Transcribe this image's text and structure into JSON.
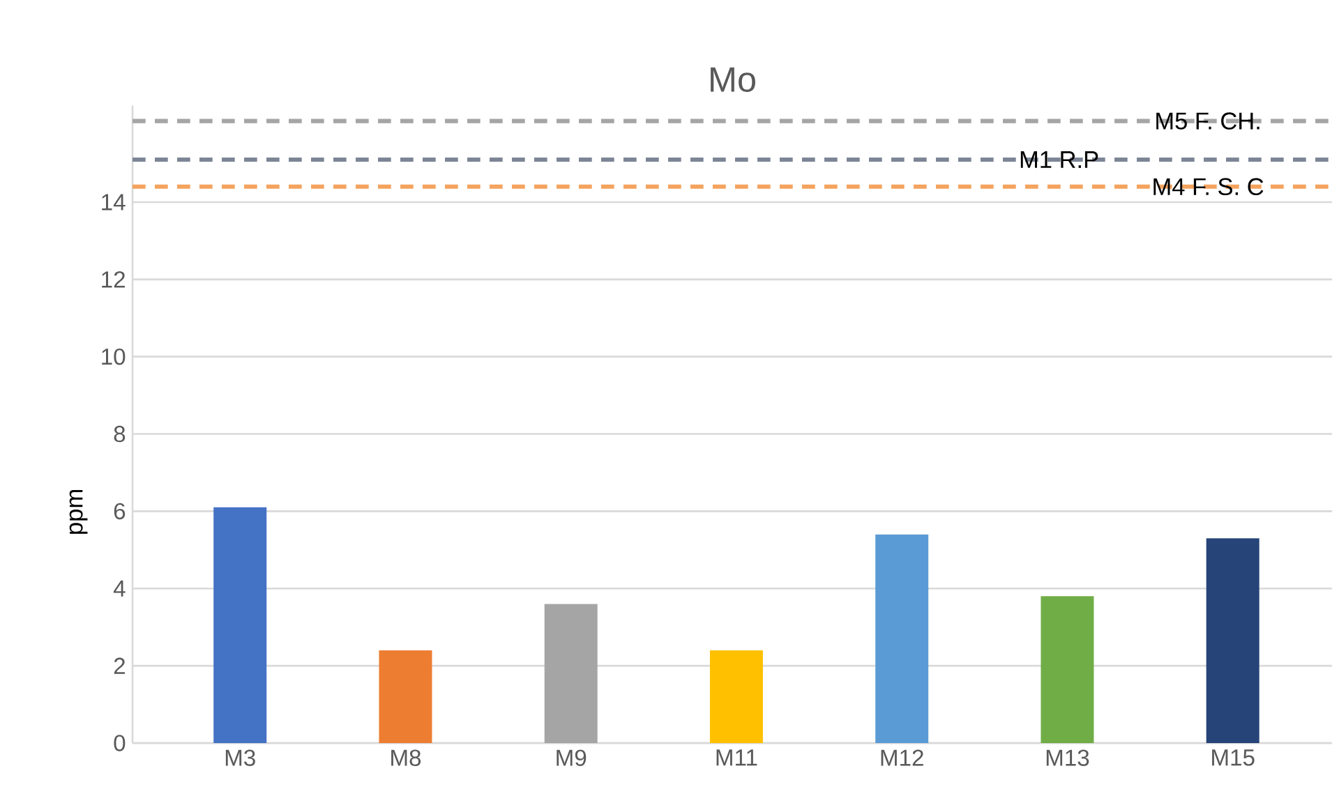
{
  "chart_data": {
    "type": "bar",
    "title": "Mo",
    "ylabel": "ppm",
    "categories": [
      "M3",
      "M8",
      "M9",
      "M11",
      "M12",
      "M13",
      "M15"
    ],
    "values": [
      6.1,
      2.4,
      3.6,
      2.4,
      5.4,
      3.8,
      5.3
    ],
    "colors": [
      "#4472c4",
      "#ed7d31",
      "#a5a5a5",
      "#ffc000",
      "#5b9bd5",
      "#70ad47",
      "#264478"
    ],
    "ylim": [
      0,
      16.5
    ],
    "yticks": [
      0,
      2,
      4,
      6,
      8,
      10,
      12,
      14
    ],
    "grid": "y",
    "ref_lines": [
      {
        "axis": "y",
        "value": 16.1,
        "label": "M5 F. CH.",
        "color": "#a5a5a5",
        "line_style": "dashed"
      },
      {
        "axis": "y",
        "value": 15.1,
        "label": "M1 R.P",
        "color": "#7c8595",
        "line_style": "dashed"
      },
      {
        "axis": "y",
        "value": 14.4,
        "label": "M4 F. S. C",
        "color": "#f4a35e",
        "line_style": "dashed"
      }
    ]
  }
}
